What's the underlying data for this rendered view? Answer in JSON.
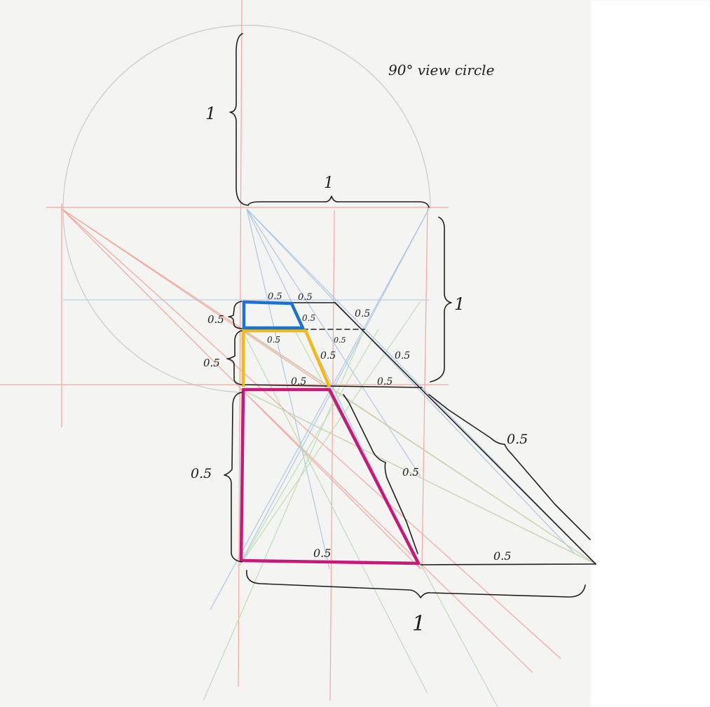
{
  "diagram": {
    "circle_label": "90° view circle",
    "dimensions": {
      "top_height": "1",
      "top_width": "1",
      "right_height": "1",
      "blue_height": "0.5",
      "yellow_height": "0.5",
      "magenta_height": "0.5",
      "blue_top_left": "0.5",
      "blue_top_right": "0.5",
      "blue_side": "0.5",
      "diag_top": "0.5",
      "yellow_top_left": "0.5",
      "yellow_top_right": "0.5",
      "yellow_side": "0.5",
      "diag_mid": "0.5",
      "yellow_bottom": "0.5",
      "ground_mid": "0.5",
      "big_diag": "0.5",
      "magenta_side": "0.5",
      "magenta_bottom": "0.5",
      "ground_right": "0.5",
      "bottom_total": "1"
    },
    "colors": {
      "blue": "#1a73d0",
      "yellow": "#f5b819",
      "magenta": "#c8187a"
    }
  }
}
